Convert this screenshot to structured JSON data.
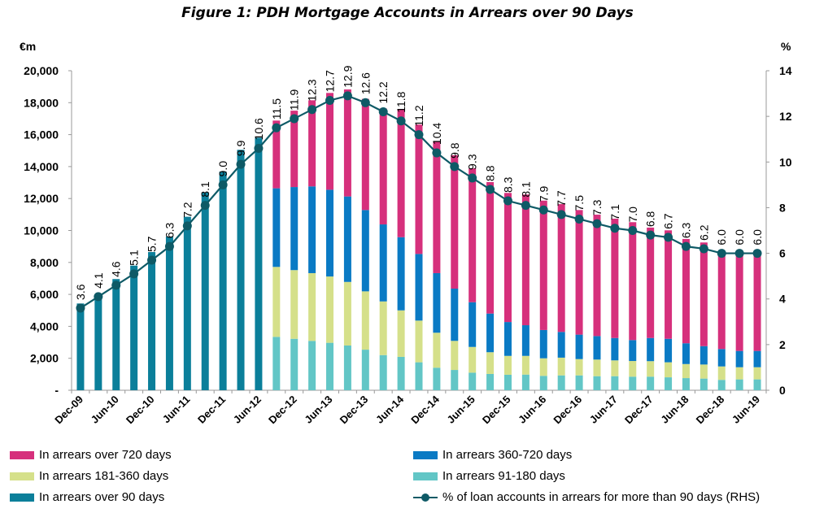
{
  "chart_data": {
    "type": "bar",
    "title": "Figure 1: PDH Mortgage Accounts in Arrears over 90 Days",
    "ylabel_left": "€m",
    "ylabel_right": "%",
    "ylim_left": [
      0,
      20000
    ],
    "ylim_right": [
      0,
      14
    ],
    "left_ticks": [
      "-",
      "2,000",
      "4,000",
      "6,000",
      "8,000",
      "10,000",
      "12,000",
      "14,000",
      "16,000",
      "18,000",
      "20,000"
    ],
    "right_ticks": [
      "0",
      "2",
      "4",
      "6",
      "8",
      "10",
      "12",
      "14"
    ],
    "x_tick_labels": [
      "Dec-09",
      "Jun-10",
      "Dec-10",
      "Jun-11",
      "Dec-11",
      "Jun-12",
      "Dec-12",
      "Jun-13",
      "Dec-13",
      "Jun-14",
      "Dec-14",
      "Jun-15",
      "Dec-15",
      "Jun-16",
      "Dec-16",
      "Jun-17",
      "Dec-17",
      "Jun-18",
      "Dec-18",
      "Jun-19"
    ],
    "quarters_per_tick": 2,
    "series": [
      {
        "name": "In arrears over 90 days",
        "color": "#0B7F9A",
        "values": [
          5430,
          6020,
          6960,
          7800,
          8650,
          9620,
          10860,
          12380,
          13690,
          15050,
          15810,
          null,
          null,
          null,
          null,
          null,
          null,
          null,
          null,
          null,
          null,
          null,
          null,
          null,
          null,
          null,
          null,
          null,
          null,
          null,
          null,
          null,
          null,
          null,
          null,
          null,
          null,
          null,
          null
        ]
      },
      {
        "name": "In arrears 91-180 days",
        "color": "#62C6C6",
        "values": [
          null,
          null,
          null,
          null,
          null,
          null,
          null,
          null,
          null,
          null,
          null,
          3340,
          3220,
          3090,
          2970,
          2800,
          2540,
          2200,
          2090,
          1750,
          1410,
          1270,
          1100,
          1020,
          970,
          980,
          900,
          930,
          930,
          880,
          880,
          850,
          850,
          810,
          760,
          730,
          650,
          680,
          680
        ]
      },
      {
        "name": "In arrears 181-360 days",
        "color": "#D5E08A",
        "values": [
          null,
          null,
          null,
          null,
          null,
          null,
          null,
          null,
          null,
          null,
          null,
          4380,
          4300,
          4240,
          4150,
          3980,
          3650,
          3360,
          2910,
          2610,
          2190,
          1820,
          1610,
          1360,
          1180,
          1170,
          1100,
          1110,
          1020,
          1040,
          990,
          980,
          970,
          940,
          880,
          880,
          840,
          760,
          760
        ]
      },
      {
        "name": "In arrears 360-720 days",
        "color": "#0A7AC4",
        "values": [
          null,
          null,
          null,
          null,
          null,
          null,
          null,
          null,
          null,
          null,
          null,
          4920,
          5200,
          5430,
          5430,
          5350,
          5090,
          4820,
          4580,
          4170,
          3730,
          3270,
          2800,
          2420,
          2120,
          1920,
          1770,
          1610,
          1530,
          1470,
          1400,
          1310,
          1450,
          1470,
          1300,
          1150,
          1090,
          1020,
          1020
        ]
      },
      {
        "name": "In arrears over 720 days",
        "color": "#D6307C",
        "values": [
          null,
          null,
          null,
          null,
          null,
          null,
          null,
          null,
          null,
          null,
          null,
          4240,
          4780,
          5390,
          6060,
          6700,
          6960,
          7260,
          8010,
          8100,
          8230,
          8350,
          8380,
          8230,
          8080,
          8180,
          8100,
          8000,
          7800,
          7600,
          7470,
          7380,
          6910,
          6790,
          6530,
          6490,
          6070,
          6140,
          6140
        ]
      }
    ],
    "line": {
      "name": "% of loan accounts in arrears for more than 90 days (RHS)",
      "color": "#0E5A66",
      "axis": "right",
      "values": [
        3.6,
        4.1,
        4.6,
        5.1,
        5.7,
        6.3,
        7.2,
        8.1,
        9.0,
        9.9,
        10.6,
        11.5,
        11.9,
        12.3,
        12.7,
        12.9,
        12.6,
        12.2,
        11.8,
        11.2,
        10.4,
        9.8,
        9.3,
        8.8,
        8.3,
        8.1,
        7.9,
        7.7,
        7.5,
        7.3,
        7.1,
        7.0,
        6.8,
        6.7,
        6.3,
        6.2,
        6.0,
        6.0,
        6.0
      ],
      "labels": [
        "3.6",
        "4.1",
        "4.6",
        "5.1",
        "5.7",
        "6.3",
        "7.2",
        "8.1",
        "9.0",
        "9.9",
        "10.6",
        "11.5",
        "11.9",
        "12.3",
        "12.7",
        "12.9",
        "12.6",
        "12.2",
        "11.8",
        "11.2",
        "10.4",
        "9.8",
        "9.3",
        "8.8",
        "8.3",
        "8.1",
        "7.9",
        "7.7",
        "7.5",
        "7.3",
        "7.1",
        "7.0",
        "6.8",
        "6.7",
        "6.3",
        "6.2",
        "6.0",
        "6.0",
        "6.0"
      ]
    },
    "legend": {
      "placement": "bottom",
      "items": [
        {
          "label": "In arrears over 720 days",
          "color": "#D6307C"
        },
        {
          "label": "In arrears 360-720 days",
          "color": "#0A7AC4"
        },
        {
          "label": "In arrears 181-360 days",
          "color": "#D5E08A"
        },
        {
          "label": "In arrears 91-180 days",
          "color": "#62C6C6"
        },
        {
          "label": "In arrears over 90 days",
          "color": "#0B7F9A"
        },
        {
          "label": "% of loan accounts in arrears for more than 90 days (RHS)",
          "color": "#0E5A66"
        }
      ]
    }
  }
}
